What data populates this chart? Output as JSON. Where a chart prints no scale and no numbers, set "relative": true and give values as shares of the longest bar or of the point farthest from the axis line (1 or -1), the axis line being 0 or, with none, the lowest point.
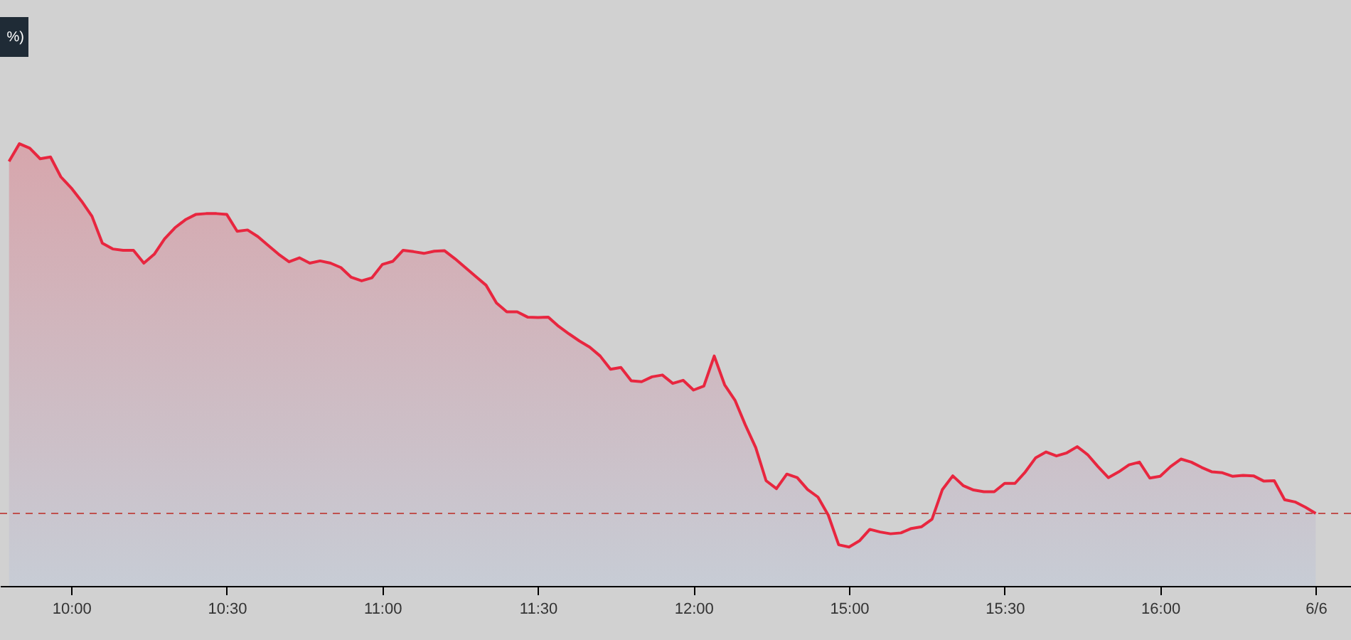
{
  "chart_data": {
    "type": "area",
    "relative": true,
    "grid": false,
    "annotations": [
      "%)"
    ],
    "categories": [
      null,
      null,
      null,
      null,
      null,
      null,
      "10:00",
      null,
      null,
      null,
      null,
      null,
      null,
      null,
      null,
      null,
      null,
      null,
      null,
      null,
      null,
      "10:30",
      null,
      null,
      null,
      null,
      null,
      null,
      null,
      null,
      null,
      null,
      null,
      null,
      null,
      null,
      "11:00",
      null,
      null,
      null,
      null,
      null,
      null,
      null,
      null,
      null,
      null,
      null,
      null,
      null,
      null,
      "11:30",
      null,
      null,
      null,
      null,
      null,
      null,
      null,
      null,
      null,
      null,
      null,
      null,
      null,
      null,
      "12:00",
      null,
      null,
      null,
      null,
      null,
      null,
      null,
      null,
      null,
      null,
      null,
      null,
      null,
      null,
      "15:00",
      null,
      null,
      null,
      null,
      null,
      null,
      null,
      null,
      null,
      null,
      null,
      null,
      null,
      null,
      "15:30",
      null,
      null,
      null,
      null,
      null,
      null,
      null,
      null,
      null,
      null,
      null,
      null,
      null,
      null,
      "16:00",
      null,
      null,
      null,
      null,
      null,
      null,
      null,
      null,
      null,
      null,
      null,
      null,
      null,
      null,
      "6/6"
    ],
    "series": [
      {
        "color": "#e8263f",
        "values": [
          0.96,
          1.0,
          0.99,
          0.966,
          0.97,
          0.925,
          0.9,
          0.87,
          0.836,
          0.775,
          0.762,
          0.759,
          0.759,
          0.73,
          0.75,
          0.785,
          0.81,
          0.828,
          0.84,
          0.842,
          0.842,
          0.84,
          0.802,
          0.805,
          0.79,
          0.77,
          0.75,
          0.733,
          0.742,
          0.73,
          0.735,
          0.73,
          0.72,
          0.698,
          0.69,
          0.697,
          0.727,
          0.734,
          0.759,
          0.756,
          0.752,
          0.757,
          0.758,
          0.74,
          0.72,
          0.7,
          0.68,
          0.64,
          0.62,
          0.62,
          0.608,
          0.607,
          0.608,
          0.587,
          0.57,
          0.554,
          0.54,
          0.52,
          0.49,
          0.494,
          0.464,
          0.462,
          0.473,
          0.477,
          0.458,
          0.465,
          0.443,
          0.452,
          0.52,
          0.455,
          0.42,
          0.364,
          0.313,
          0.238,
          0.22,
          0.253,
          0.245,
          0.218,
          0.201,
          0.16,
          0.093,
          0.088,
          0.102,
          0.128,
          0.122,
          0.118,
          0.12,
          0.13,
          0.134,
          0.151,
          0.218,
          0.249,
          0.227,
          0.217,
          0.213,
          0.213,
          0.232,
          0.232,
          0.258,
          0.29,
          0.303,
          0.294,
          0.301,
          0.315,
          0.297,
          0.27,
          0.245,
          0.258,
          0.274,
          0.28,
          0.244,
          0.248,
          0.27,
          0.287,
          0.28,
          0.268,
          0.258,
          0.256,
          0.248,
          0.25,
          0.249,
          0.237,
          0.238,
          0.195,
          0.19,
          0.178,
          0.164
        ]
      }
    ],
    "ref_lines": [
      {
        "axis": "y",
        "value": 0.164,
        "color": "#c0504d",
        "line_style": "dashed"
      }
    ]
  }
}
